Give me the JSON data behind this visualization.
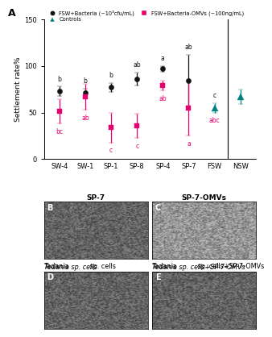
{
  "categories": [
    "SW-4",
    "SW-1",
    "SP-1",
    "SP-8",
    "SP-4",
    "SP-7",
    "FSW",
    "NSW"
  ],
  "black_means": [
    73,
    71,
    77,
    86,
    97,
    84,
    null,
    null
  ],
  "black_errors": [
    5,
    5,
    5,
    7,
    3,
    28,
    null,
    null
  ],
  "black_labels": [
    "b",
    "b",
    "b",
    "ab",
    "a",
    "ab",
    null,
    null
  ],
  "pink_means": [
    51,
    67,
    34,
    36,
    79,
    55,
    null,
    null
  ],
  "pink_errors": [
    13,
    14,
    16,
    13,
    5,
    30,
    null,
    null
  ],
  "pink_labels": [
    "bc",
    "ab",
    "c",
    "c",
    "ab",
    "a",
    null,
    null
  ],
  "teal_means": [
    null,
    null,
    null,
    null,
    null,
    null,
    55,
    67
  ],
  "teal_errors": [
    null,
    null,
    null,
    null,
    null,
    null,
    5,
    8
  ],
  "fsw_black_label": "c",
  "fsw_pink_label": "abc",
  "legend_black": "FSW+Bacteria (~10³cfu/mL)",
  "legend_pink": "FSW+Bacteria-OMVs (~100ng/mL)",
  "legend_teal": "Controls",
  "ylabel": "Settlement rate%",
  "ylim": [
    0,
    150
  ],
  "yticks": [
    0,
    50,
    100,
    150
  ],
  "black_color": "#111111",
  "pink_color": "#e8006e",
  "teal_color": "#008080",
  "panel_b_title": "SP-7",
  "panel_c_title": "SP-7-OMVs",
  "panel_d_title_italic": "Tedania",
  "panel_d_title_rest": " sp. cells",
  "panel_e_title_italic": "Tedania",
  "panel_e_title_rest": " sp. cells+SP-7-OMVs"
}
